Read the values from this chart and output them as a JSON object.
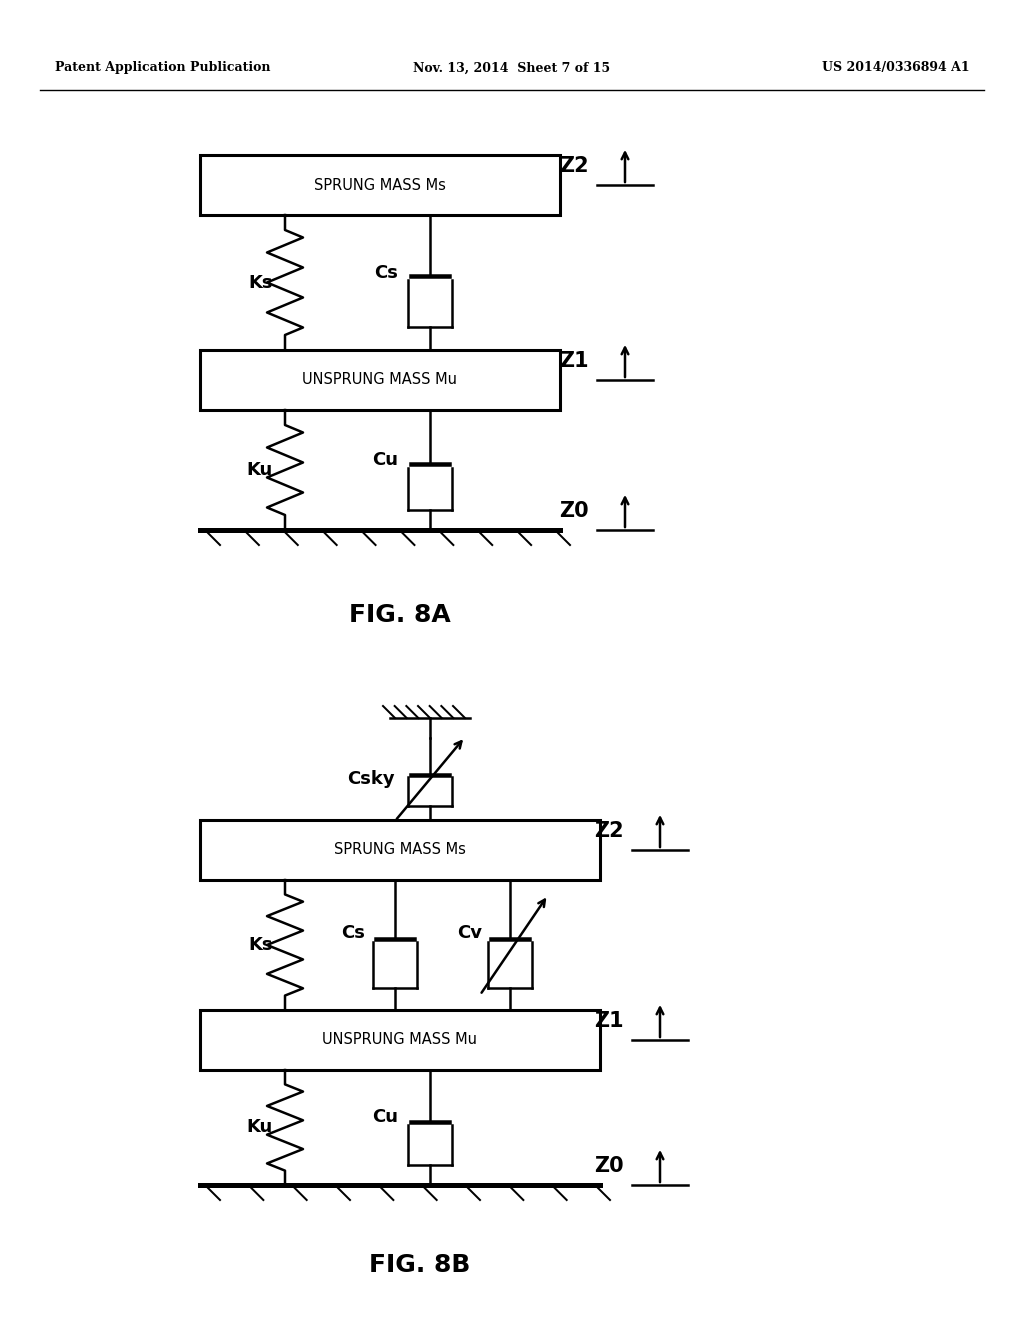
{
  "background_color": "#ffffff",
  "header_left": "Patent Application Publication",
  "header_center": "Nov. 13, 2014  Sheet 7 of 15",
  "header_right": "US 2014/0336894 A1",
  "fig8a_label": "FIG. 8A",
  "fig8b_label": "FIG. 8B",
  "line_color": "#000000",
  "lw": 1.8,
  "blw": 2.2,
  "text_color": "#000000"
}
